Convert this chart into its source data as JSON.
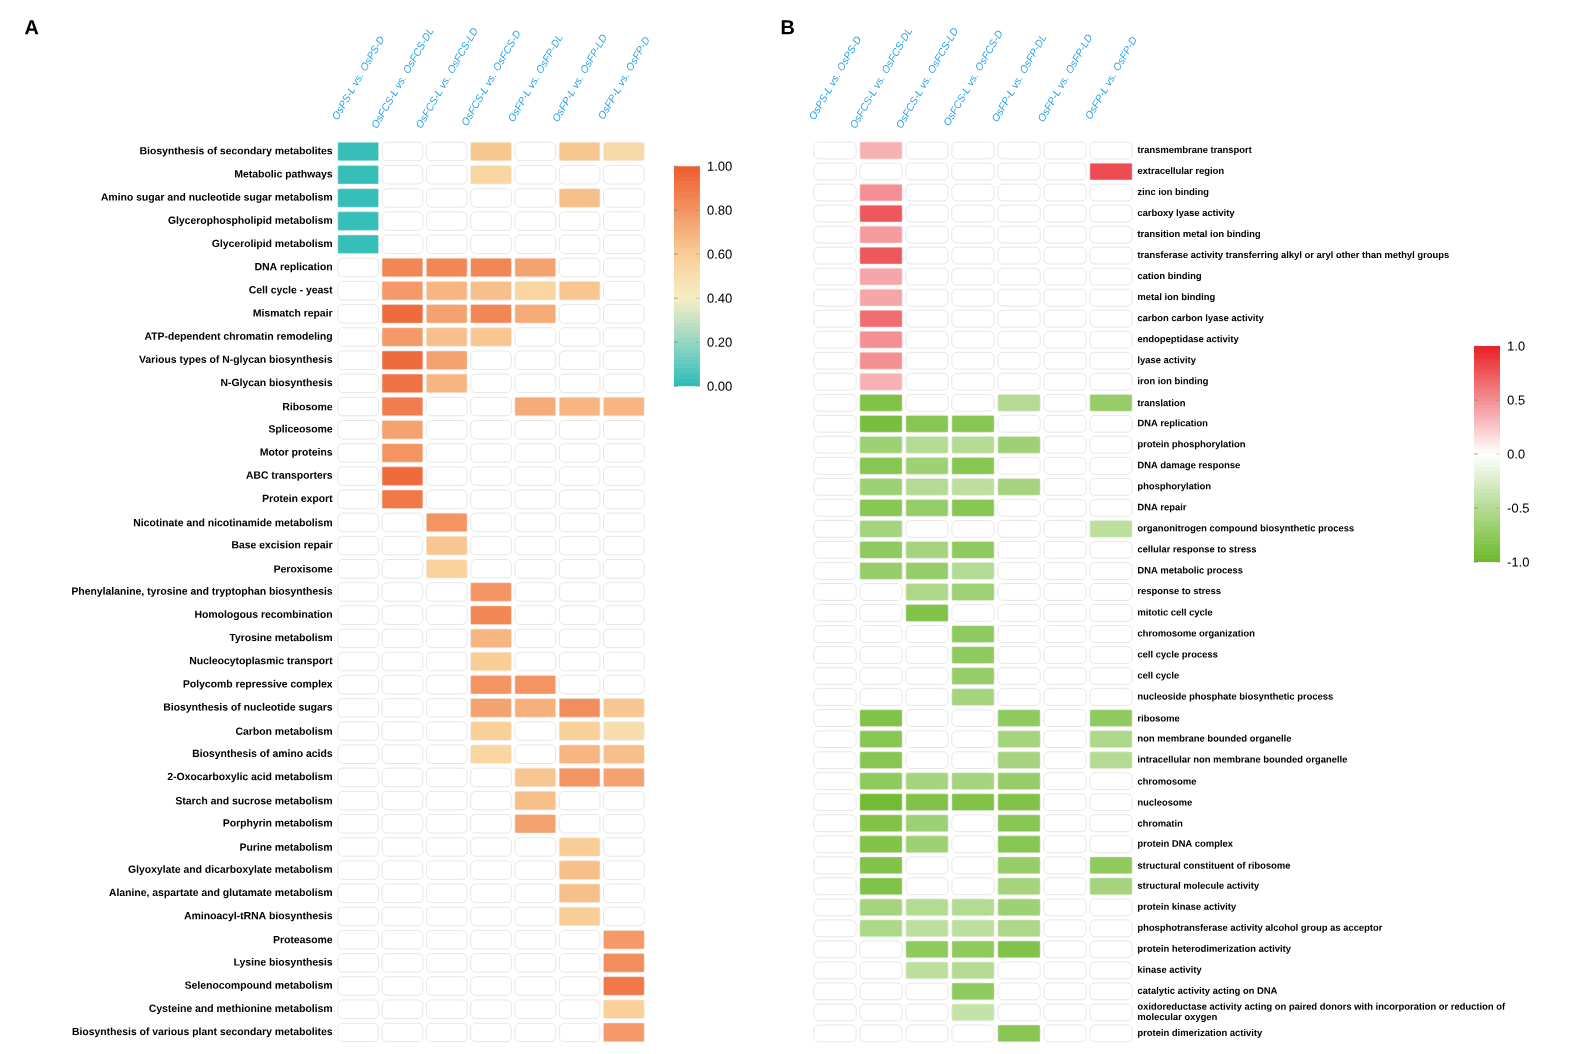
{
  "chart_data": [
    {
      "type": "heatmap",
      "title": "A",
      "categories": [
        "OsPS-L vs. OsPS-D",
        "OsFCS-L vs. OsFCS-DL",
        "OsFCS-L vs. OsFCS-LD",
        "OsFCS-L vs. OsFCS-D",
        "OsFP-L vs. OsFP-DL",
        "OsFP-L vs. OsFP-LD",
        "OsFP-L vs. OsFP-D"
      ],
      "y_categories": [
        "Biosynthesis of secondary metabolites",
        "Metabolic pathways",
        "Amino sugar and nucleotide sugar metabolism",
        "Glycerophospholipid metabolism",
        "Glycerolipid metabolism",
        "DNA replication",
        "Cell cycle - yeast",
        "Mismatch repair",
        "ATP-dependent chromatin remodeling",
        "Various types of N-glycan biosynthesis",
        "N-Glycan biosynthesis",
        "Ribosome",
        "Spliceosome",
        "Motor proteins",
        "ABC transporters",
        "Protein export",
        "Nicotinate and nicotinamide metabolism",
        "Base excision repair",
        "Peroxisome",
        "Phenylalanine, tyrosine and tryptophan biosynthesis",
        "Homologous recombination",
        "Tyrosine metabolism",
        "Nucleocytoplasmic transport",
        "Polycomb repressive complex",
        "Biosynthesis of nucleotide sugars",
        "Carbon metabolism",
        "Biosynthesis of amino acids",
        "2-Oxocarboxylic acid metabolism",
        "Starch and sucrose metabolism",
        "Porphyrin metabolism",
        "Purine metabolism",
        "Glyoxylate and dicarboxylate metabolism",
        "Alanine, aspartate and glutamate metabolism",
        "Aminoacyl-tRNA biosynthesis",
        "Proteasome",
        "Lysine biosynthesis",
        "Selenocompound metabolism",
        "Cysteine and methionine metabolism",
        "Biosynthesis of various plant secondary metabolites"
      ],
      "cells": [
        [
          0.02,
          null,
          null,
          0.62,
          null,
          0.62,
          0.52
        ],
        [
          0.02,
          null,
          null,
          0.55,
          null,
          null,
          null
        ],
        [
          0.02,
          null,
          null,
          null,
          null,
          0.65,
          null
        ],
        [
          0.02,
          null,
          null,
          null,
          null,
          null,
          null
        ],
        [
          0.02,
          null,
          null,
          null,
          null,
          null,
          null
        ],
        [
          null,
          0.85,
          0.85,
          0.85,
          0.75,
          null,
          null
        ],
        [
          null,
          0.78,
          0.68,
          0.65,
          0.55,
          0.62,
          null
        ],
        [
          null,
          0.95,
          0.75,
          0.85,
          0.72,
          null,
          null
        ],
        [
          null,
          0.78,
          0.65,
          0.62,
          null,
          null,
          null
        ],
        [
          null,
          0.95,
          0.75,
          null,
          null,
          null,
          null
        ],
        [
          null,
          0.92,
          0.68,
          null,
          null,
          null,
          null
        ],
        [
          null,
          0.88,
          null,
          null,
          0.72,
          0.68,
          0.68
        ],
        [
          null,
          0.75,
          null,
          null,
          null,
          null,
          null
        ],
        [
          null,
          0.8,
          null,
          null,
          null,
          null,
          null
        ],
        [
          null,
          0.95,
          null,
          null,
          null,
          null,
          null
        ],
        [
          null,
          0.9,
          null,
          null,
          null,
          null,
          null
        ],
        [
          null,
          null,
          0.8,
          null,
          null,
          null,
          null
        ],
        [
          null,
          null,
          0.62,
          null,
          null,
          null,
          null
        ],
        [
          null,
          null,
          0.57,
          null,
          null,
          null,
          null
        ],
        [
          null,
          null,
          null,
          0.8,
          null,
          null,
          null
        ],
        [
          null,
          null,
          null,
          0.85,
          null,
          null,
          null
        ],
        [
          null,
          null,
          null,
          0.68,
          null,
          null,
          null
        ],
        [
          null,
          null,
          null,
          0.6,
          null,
          null,
          null
        ],
        [
          null,
          null,
          null,
          0.8,
          0.8,
          null,
          null
        ],
        [
          null,
          null,
          null,
          0.75,
          0.7,
          0.82,
          0.62
        ],
        [
          null,
          null,
          null,
          0.58,
          null,
          0.58,
          0.5
        ],
        [
          null,
          null,
          null,
          0.55,
          null,
          0.68,
          0.65
        ],
        [
          null,
          null,
          null,
          null,
          0.62,
          0.8,
          0.75
        ],
        [
          null,
          null,
          null,
          null,
          0.65,
          null,
          null
        ],
        [
          null,
          null,
          null,
          null,
          0.75,
          null,
          null
        ],
        [
          null,
          null,
          null,
          null,
          null,
          0.6,
          null
        ],
        [
          null,
          null,
          null,
          null,
          null,
          0.65,
          null
        ],
        [
          null,
          null,
          null,
          null,
          null,
          0.65,
          null
        ],
        [
          null,
          null,
          null,
          null,
          null,
          0.6,
          null
        ],
        [
          null,
          null,
          null,
          null,
          null,
          null,
          0.78
        ],
        [
          null,
          null,
          null,
          null,
          null,
          null,
          0.82
        ],
        [
          null,
          null,
          null,
          null,
          null,
          null,
          0.9
        ],
        [
          null,
          null,
          null,
          null,
          null,
          null,
          0.58
        ],
        [
          null,
          null,
          null,
          null,
          null,
          null,
          0.78
        ]
      ],
      "clim": [
        0,
        1
      ],
      "cticks": [
        {
          "value": 0,
          "label": "0.00"
        },
        {
          "value": 0.2,
          "label": "0.20"
        },
        {
          "value": 0.4,
          "label": "0.40"
        },
        {
          "value": 0.6,
          "label": "0.60"
        },
        {
          "value": 0.8,
          "label": "0.80"
        },
        {
          "value": 1,
          "label": "1.00"
        }
      ]
    },
    {
      "type": "heatmap",
      "title": "B",
      "categories": [
        "OsPS-L vs. OsPS-D",
        "OsFCS-L vs. OsFCS-DL",
        "OsFCS-L vs. OsFCS-LD",
        "OsFCS-L vs. OsFCS-D",
        "OsFP-L vs. OsFP-DL",
        "OsFP-L vs. OsFP-LD",
        "OsFP-L vs. OsFP-D"
      ],
      "y_categories": [
        "transmembrane transport",
        "extracellular region",
        "zinc ion binding",
        "carboxy lyase activity",
        "transition metal ion binding",
        "transferase activity transferring alkyl or aryl other than methyl groups",
        "cation binding",
        "metal ion binding",
        "carbon carbon lyase activity",
        "endopeptidase activity",
        "lyase activity",
        "iron ion binding",
        "translation",
        "DNA replication",
        "protein phosphorylation",
        "DNA damage response",
        "phosphorylation",
        "DNA repair",
        "organonitrogen compound biosynthetic process",
        "cellular response to stress",
        "DNA metabolic process",
        "response to stress",
        "mitotic cell cycle",
        "chromosome organization",
        "cell cycle process",
        "cell cycle",
        "nucleoside phosphate biosynthetic process",
        "ribosome",
        "non membrane bounded organelle",
        "intracellular non membrane bounded organelle",
        "chromosome",
        "nucleosome",
        "chromatin",
        "protein DNA complex",
        "structural constituent of ribosome",
        "structural molecule activity",
        "protein kinase activity",
        "phosphotransferase activity alcohol group as acceptor",
        "protein heterodimerization activity",
        "kinase activity",
        "catalytic activity acting on DNA",
        "oxidoreductase activity acting on paired donors with incorporation or reduction of molecular oxygen",
        "protein dimerization activity"
      ],
      "cells": [
        [
          null,
          0.35,
          null,
          null,
          null,
          null,
          null
        ],
        [
          null,
          null,
          null,
          null,
          null,
          null,
          0.8
        ],
        [
          null,
          0.5,
          null,
          null,
          null,
          null,
          null
        ],
        [
          null,
          0.75,
          null,
          null,
          null,
          null,
          null
        ],
        [
          null,
          0.45,
          null,
          null,
          null,
          null,
          null
        ],
        [
          null,
          0.75,
          null,
          null,
          null,
          null,
          null
        ],
        [
          null,
          0.4,
          null,
          null,
          null,
          null,
          null
        ],
        [
          null,
          0.4,
          null,
          null,
          null,
          null,
          null
        ],
        [
          null,
          0.65,
          null,
          null,
          null,
          null,
          null
        ],
        [
          null,
          0.5,
          null,
          null,
          null,
          null,
          null
        ],
        [
          null,
          0.5,
          null,
          null,
          null,
          null,
          null
        ],
        [
          null,
          0.35,
          null,
          null,
          null,
          null,
          null
        ],
        [
          null,
          -0.85,
          null,
          null,
          -0.5,
          null,
          -0.7
        ],
        [
          null,
          -0.9,
          -0.8,
          -0.8,
          null,
          null,
          null
        ],
        [
          null,
          -0.65,
          -0.5,
          -0.5,
          -0.65,
          null,
          null
        ],
        [
          null,
          -0.8,
          -0.65,
          -0.8,
          null,
          null,
          null
        ],
        [
          null,
          -0.65,
          -0.5,
          -0.45,
          -0.6,
          null,
          null
        ],
        [
          null,
          -0.8,
          -0.7,
          -0.8,
          null,
          null,
          null
        ],
        [
          null,
          -0.6,
          null,
          null,
          null,
          null,
          -0.45
        ],
        [
          null,
          -0.75,
          -0.6,
          -0.75,
          null,
          null,
          null
        ],
        [
          null,
          -0.7,
          -0.7,
          -0.5,
          null,
          null,
          null
        ],
        [
          null,
          null,
          -0.55,
          -0.65,
          null,
          null,
          null
        ],
        [
          null,
          null,
          -0.85,
          null,
          null,
          null,
          null
        ],
        [
          null,
          null,
          null,
          -0.75,
          null,
          null,
          null
        ],
        [
          null,
          null,
          null,
          -0.75,
          null,
          null,
          null
        ],
        [
          null,
          null,
          null,
          -0.7,
          null,
          null,
          null
        ],
        [
          null,
          null,
          null,
          -0.6,
          null,
          null,
          null
        ],
        [
          null,
          -0.85,
          null,
          null,
          -0.75,
          null,
          -0.75
        ],
        [
          null,
          -0.8,
          null,
          null,
          -0.6,
          null,
          -0.55
        ],
        [
          null,
          -0.8,
          null,
          null,
          -0.6,
          null,
          -0.5
        ],
        [
          null,
          -0.75,
          -0.6,
          -0.6,
          -0.7,
          null,
          null
        ],
        [
          null,
          -0.95,
          -0.85,
          -0.85,
          -0.85,
          null,
          null
        ],
        [
          null,
          -0.85,
          -0.65,
          null,
          -0.8,
          null,
          null
        ],
        [
          null,
          -0.85,
          -0.65,
          null,
          -0.8,
          null,
          null
        ],
        [
          null,
          -0.85,
          null,
          null,
          -0.7,
          null,
          -0.75
        ],
        [
          null,
          -0.85,
          null,
          null,
          -0.6,
          null,
          -0.6
        ],
        [
          null,
          -0.6,
          -0.5,
          -0.5,
          -0.65,
          null,
          null
        ],
        [
          null,
          -0.55,
          -0.45,
          -0.45,
          -0.55,
          null,
          null
        ],
        [
          null,
          null,
          -0.75,
          -0.75,
          -0.85,
          null,
          null
        ],
        [
          null,
          null,
          -0.45,
          -0.5,
          null,
          null,
          null
        ],
        [
          null,
          null,
          null,
          -0.75,
          null,
          null,
          null
        ],
        [
          null,
          null,
          null,
          -0.4,
          null,
          null,
          null
        ],
        [
          null,
          null,
          null,
          null,
          -0.8,
          null,
          null
        ]
      ],
      "clim": [
        -1,
        1
      ],
      "cticks": [
        {
          "value": -1,
          "label": "-1.0"
        },
        {
          "value": -0.5,
          "label": "-0.5"
        },
        {
          "value": 0,
          "label": "0.0"
        },
        {
          "value": 0.5,
          "label": "0.5"
        },
        {
          "value": 1,
          "label": "1.0"
        }
      ]
    }
  ]
}
